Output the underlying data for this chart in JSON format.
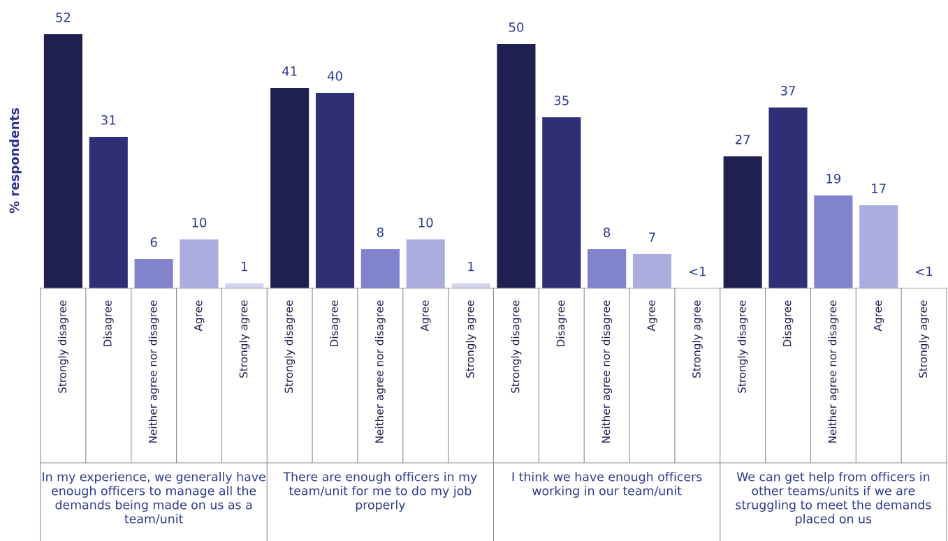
{
  "chart_data": {
    "type": "bar",
    "ylabel": "% respondents",
    "categories": [
      "Strongly disagree",
      "Disagree",
      "Neither agree nor disagree",
      "Agree",
      "Strongly agree",
      "Strongly disagree",
      "Disagree",
      "Neither agree nor disagree",
      "Agree",
      "Strongly agree",
      "Strongly disagree",
      "Disagree",
      "Neither agree nor disagree",
      "Agree",
      "Strongly agree",
      "Strongly disagree",
      "Disagree",
      "Neither agree nor disagree",
      "Agree",
      "Strongly agree"
    ],
    "values": [
      52,
      31,
      6,
      10,
      1,
      41,
      40,
      8,
      10,
      1,
      50,
      35,
      8,
      7,
      0,
      27,
      37,
      19,
      17,
      0
    ],
    "value_labels": [
      "52",
      "31",
      "6",
      "10",
      "1",
      "41",
      "40",
      "8",
      "10",
      "1",
      "50",
      "35",
      "8",
      "7",
      "<1",
      "27",
      "37",
      "19",
      "17",
      "<1"
    ],
    "colors": [
      "#1f2050",
      "#2e2f74",
      "#8183cc",
      "#acaddf",
      "#d3d4ee",
      "#1f2050",
      "#2e2f74",
      "#8183cc",
      "#acaddf",
      "#d3d4ee",
      "#1f2050",
      "#2e2f74",
      "#8183cc",
      "#acaddf",
      "#d3d4ee",
      "#1f2050",
      "#2e2f74",
      "#8183cc",
      "#acaddf",
      "#d3d4ee"
    ],
    "annotations": [
      "In my experience, we generally have\nenough officers to manage all the\ndemands being made on us as a\nteam/unit",
      "There are enough officers in my\nteam/unit for me to do my job\nproperly",
      "I think we have enough officers\nworking in our team/unit",
      "We can get help from officers in\nother teams/units if we are\nstruggling to meet the demands\nplaced on us"
    ],
    "grid": false,
    "legend": false
  }
}
